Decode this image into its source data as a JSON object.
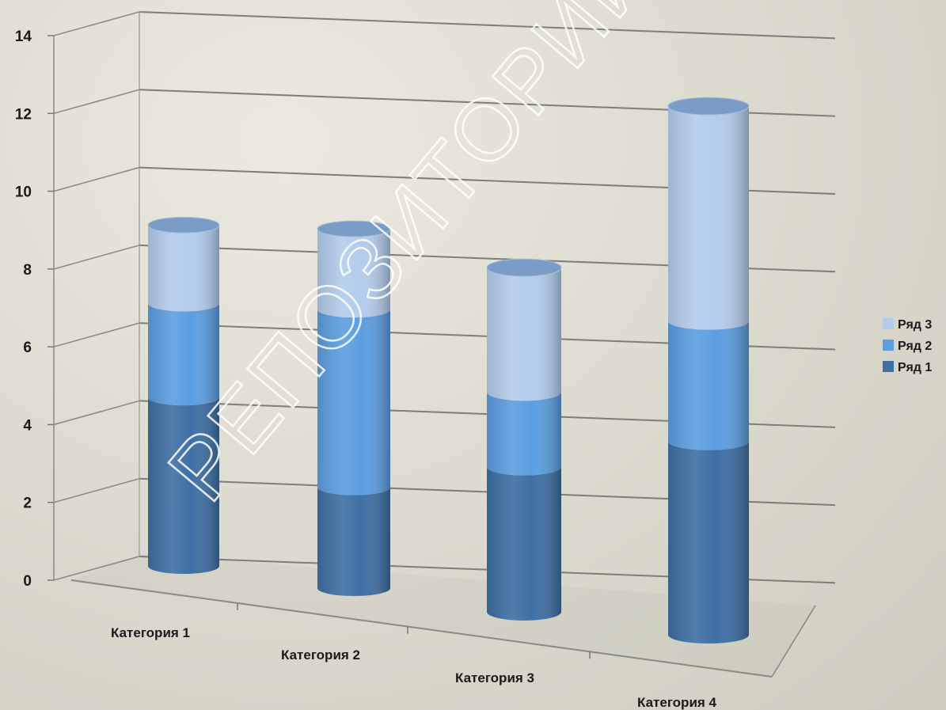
{
  "chart_data": {
    "type": "bar",
    "stacked": true,
    "style": "3d-cylinder",
    "title": "",
    "xlabel": "",
    "ylabel": "",
    "categories": [
      "Категория 1",
      "Категория 2",
      "Категория 3",
      "Категория 4"
    ],
    "series": [
      {
        "name": "Ряд 1",
        "values": [
          4.3,
          2.5,
          3.5,
          4.5
        ],
        "color": "#3e6fa4"
      },
      {
        "name": "Ряд 2",
        "values": [
          2.4,
          4.4,
          1.8,
          2.8
        ],
        "color": "#5c9ee0"
      },
      {
        "name": "Ряд 3",
        "values": [
          2.0,
          2.0,
          3.0,
          5.0
        ],
        "color": "#b3ccec"
      }
    ],
    "ylim": [
      0,
      14
    ],
    "yticks": [
      0,
      2,
      4,
      6,
      8,
      10,
      12,
      14
    ],
    "grid": true,
    "legend_position": "right"
  },
  "watermark": "РЕПОЗИТОРИЙ БГПУ"
}
